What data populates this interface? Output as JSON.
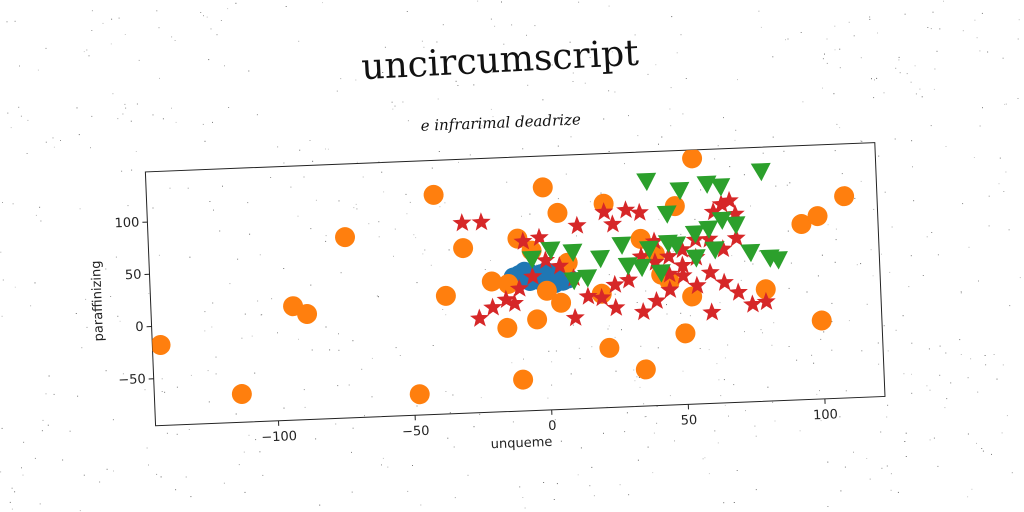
{
  "chart_data": {
    "type": "scatter",
    "title": "uncircumscript",
    "subtitle": "e infrarimal deadrize",
    "xlabel": "unqueme",
    "ylabel": "paraffinizing",
    "xlim": [
      -145,
      122
    ],
    "ylim": [
      -95,
      148
    ],
    "xticks": [
      -100,
      -50,
      0,
      50,
      100
    ],
    "yticks": [
      -50,
      0,
      50,
      100
    ],
    "xtick_labels": [
      "−100",
      "−50",
      "0",
      "50",
      "100"
    ],
    "ytick_labels": [
      "−50",
      "0",
      "50",
      "100"
    ],
    "grid": false,
    "series": [
      {
        "marker": "circle",
        "color": "#1f77b4",
        "points": [
          [
            -12,
            33
          ],
          [
            -10,
            35
          ],
          [
            -8,
            38
          ],
          [
            -6,
            36
          ],
          [
            -4,
            33
          ],
          [
            -2,
            35
          ],
          [
            0,
            37
          ],
          [
            2,
            34
          ],
          [
            4,
            31
          ],
          [
            6,
            28
          ],
          [
            3,
            26
          ],
          [
            0,
            28
          ],
          [
            -3,
            30
          ],
          [
            -6,
            29
          ],
          [
            -9,
            31
          ],
          [
            -11,
            30
          ],
          [
            -7,
            33
          ],
          [
            -1,
            32
          ],
          [
            5,
            33
          ],
          [
            8,
            30
          ]
        ]
      },
      {
        "marker": "circle",
        "color": "#ff7f0e",
        "points": [
          [
            25,
            160
          ],
          [
            55,
            140
          ],
          [
            -40,
            115
          ],
          [
            0,
            118
          ],
          [
            22,
            100
          ],
          [
            5,
            93
          ],
          [
            -73,
            78
          ],
          [
            -30,
            63
          ],
          [
            -10,
            70
          ],
          [
            -5,
            58
          ],
          [
            8,
            45
          ],
          [
            35,
            65
          ],
          [
            40,
            50
          ],
          [
            42,
            30
          ],
          [
            53,
            8
          ],
          [
            80,
            12
          ],
          [
            -37,
            18
          ],
          [
            -93,
            14
          ],
          [
            -88,
            6
          ],
          [
            -14,
            27
          ],
          [
            0,
            19
          ],
          [
            5,
            7
          ],
          [
            20,
            14
          ],
          [
            -4,
            -8
          ],
          [
            -15,
            -15
          ],
          [
            22,
            -38
          ],
          [
            35,
            -60
          ],
          [
            -10,
            -65
          ],
          [
            -48,
            -75
          ],
          [
            -113,
            -68
          ],
          [
            -142,
            -18
          ],
          [
            50,
            -27
          ],
          [
            100,
            -20
          ],
          [
            94,
            73
          ],
          [
            100,
            80
          ],
          [
            110,
            98
          ],
          [
            45,
            23
          ],
          [
            48,
            95
          ],
          [
            -20,
            30
          ]
        ]
      },
      {
        "marker": "star",
        "color": "#d62728",
        "points": [
          [
            -30,
            87
          ],
          [
            -23,
            87
          ],
          [
            -8,
            67
          ],
          [
            -2,
            70
          ],
          [
            12,
            80
          ],
          [
            25,
            80
          ],
          [
            22,
            92
          ],
          [
            30,
            93
          ],
          [
            35,
            90
          ],
          [
            40,
            62
          ],
          [
            45,
            47
          ],
          [
            50,
            53
          ],
          [
            55,
            62
          ],
          [
            60,
            62
          ],
          [
            62,
            88
          ],
          [
            65,
            95
          ],
          [
            68,
            98
          ],
          [
            70,
            85
          ],
          [
            70,
            62
          ],
          [
            65,
            52
          ],
          [
            60,
            30
          ],
          [
            55,
            18
          ],
          [
            50,
            38
          ],
          [
            45,
            30
          ],
          [
            40,
            42
          ],
          [
            35,
            48
          ],
          [
            30,
            26
          ],
          [
            25,
            22
          ],
          [
            20,
            10
          ],
          [
            15,
            12
          ],
          [
            10,
            30
          ],
          [
            5,
            42
          ],
          [
            0,
            48
          ],
          [
            -5,
            33
          ],
          [
            -10,
            22
          ],
          [
            -15,
            12
          ],
          [
            -20,
            5
          ],
          [
            -25,
            -5
          ],
          [
            -12,
            8
          ],
          [
            10,
            -8
          ],
          [
            25,
            0
          ],
          [
            35,
            -5
          ],
          [
            40,
            5
          ],
          [
            45,
            15
          ],
          [
            50,
            28
          ],
          [
            55,
            45
          ],
          [
            65,
            20
          ],
          [
            70,
            10
          ],
          [
            75,
            -2
          ],
          [
            80,
            0
          ],
          [
            60,
            -8
          ]
        ]
      },
      {
        "marker": "triangle",
        "color": "#2ca02c",
        "points": [
          [
            38,
            120
          ],
          [
            50,
            110
          ],
          [
            60,
            115
          ],
          [
            65,
            112
          ],
          [
            80,
            125
          ],
          [
            45,
            88
          ],
          [
            28,
            60
          ],
          [
            38,
            55
          ],
          [
            45,
            60
          ],
          [
            55,
            68
          ],
          [
            60,
            72
          ],
          [
            65,
            80
          ],
          [
            70,
            75
          ],
          [
            75,
            48
          ],
          [
            82,
            42
          ],
          [
            85,
            40
          ],
          [
            10,
            55
          ],
          [
            2,
            58
          ],
          [
            -5,
            50
          ],
          [
            20,
            48
          ],
          [
            30,
            40
          ],
          [
            35,
            38
          ],
          [
            42,
            32
          ],
          [
            15,
            30
          ],
          [
            10,
            28
          ],
          [
            55,
            45
          ],
          [
            62,
            52
          ],
          [
            48,
            58
          ]
        ]
      }
    ]
  }
}
